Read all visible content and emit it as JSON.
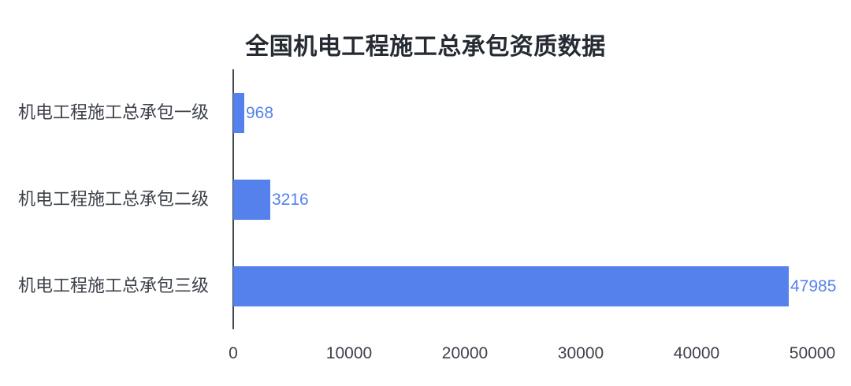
{
  "title": "全国机电工程施工总承包资质数据",
  "colors": {
    "background": "#FFFFFF",
    "bar": "#5581ED",
    "value_label": "#5581ED",
    "title": "#262B33",
    "axis_label": "#3D424A",
    "axis_line": "#43484F"
  },
  "chart_data": {
    "type": "bar",
    "orientation": "horizontal",
    "title": "全国机电工程施工总承包资质数据",
    "categories": [
      "机电工程施工总承包一级",
      "机电工程施工总承包二级",
      "机电工程施工总承包三级"
    ],
    "values": [
      968,
      3216,
      47985
    ],
    "value_labels": [
      "968",
      "3216",
      "47985"
    ],
    "xlim": [
      0,
      50000
    ],
    "x_ticks": [
      0,
      10000,
      20000,
      30000,
      40000,
      50000
    ],
    "x_tick_labels": [
      "0",
      "10000",
      "20000",
      "30000",
      "40000",
      "50000"
    ],
    "xlabel": "",
    "ylabel": "",
    "grid": false,
    "legend": false
  }
}
